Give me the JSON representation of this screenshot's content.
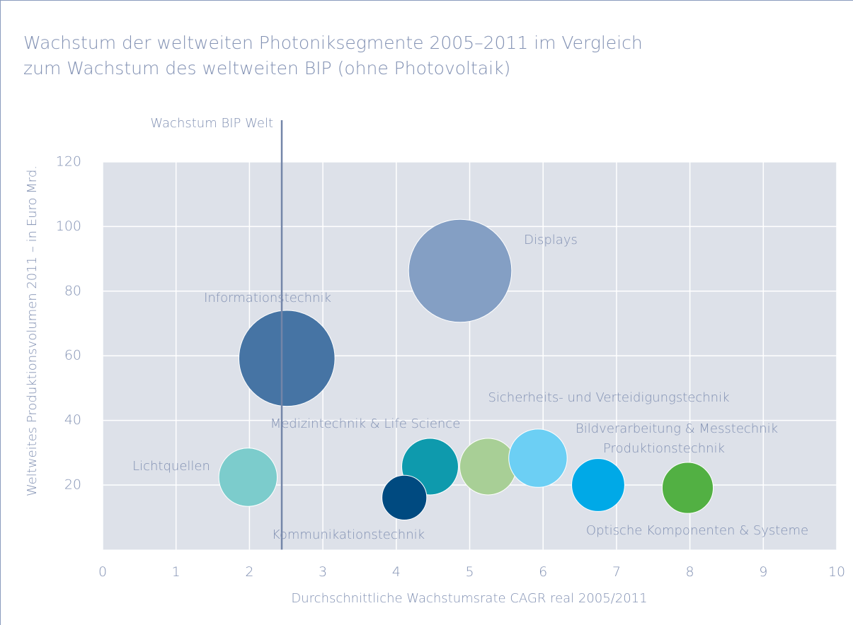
{
  "chart_data": {
    "type": "bubble",
    "title": [
      "Wachstum der weltweiten Photoniksegmente 2005–2011 im Vergleich",
      "zum Wachstum des weltweiten BIP (ohne Photovoltaik)"
    ],
    "x_label": "Durchschnittliche Wachstumsrate CAGR real 2005/2011",
    "y_label": "Weltweites Produktionsvolumen 2011 – in Euro Mrd.",
    "xlim": [
      0,
      10
    ],
    "xticks": [
      0,
      1,
      2,
      3,
      4,
      5,
      6,
      7,
      8,
      9,
      10
    ],
    "ylim": [
      0,
      120
    ],
    "yticks": [
      20,
      40,
      60,
      80,
      100,
      120
    ],
    "grid": true,
    "reference_line": {
      "x": 2.44,
      "label": "Wachstum BIP Welt"
    },
    "points": [
      {
        "name": "Displays",
        "x": 4.87,
        "y": 86.3,
        "size": 53,
        "color": "#849fc4"
      },
      {
        "name": "Informationstechnik",
        "x": 2.51,
        "y": 59.2,
        "size": 46,
        "color": "#4674a4"
      },
      {
        "name": "Lichtquellen",
        "x": 1.98,
        "y": 22.4,
        "size": 17,
        "color": "#7ccccc"
      },
      {
        "name": "Medizintechnik & Life Science",
        "x": 4.46,
        "y": 25.7,
        "size": 16,
        "color": "#0e9aad"
      },
      {
        "name": "Kommunikationstechnik",
        "x": 4.11,
        "y": 16.1,
        "size": 10,
        "color": "#004a80"
      },
      {
        "name": "Sicherheits- und Verteidigungstechnik",
        "x": 5.25,
        "y": 25.7,
        "size": 16,
        "color": "#a8cf96"
      },
      {
        "name": "Bildverarbeitung & Messtechnik",
        "x": 5.93,
        "y": 28.3,
        "size": 17,
        "color": "#6ccff4"
      },
      {
        "name": "Produktionstechnik",
        "x": 6.75,
        "y": 20,
        "size": 14,
        "color": "#00a9e7"
      },
      {
        "name": "Optische Komponenten & Systeme",
        "x": 7.97,
        "y": 19.1,
        "size": 13,
        "color": "#52b043"
      }
    ]
  }
}
